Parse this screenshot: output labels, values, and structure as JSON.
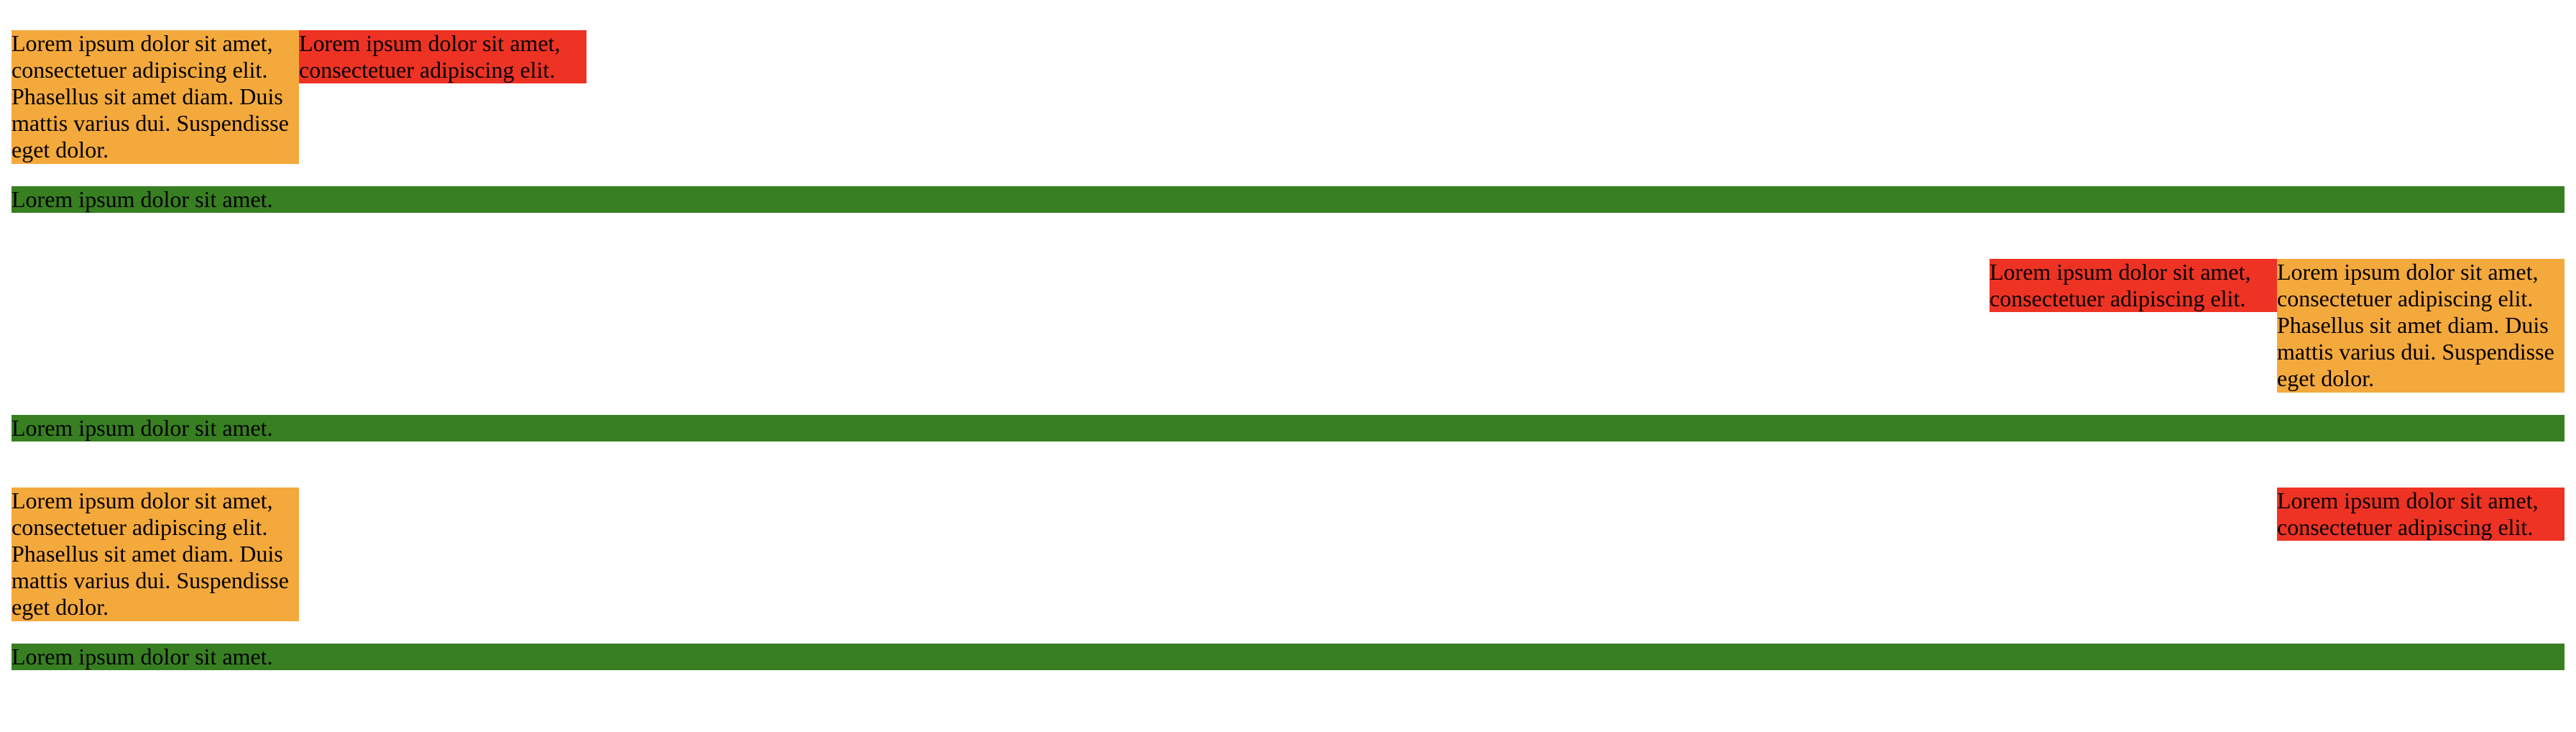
{
  "colors": {
    "orange": "#f4a93c",
    "red": "#ee3324",
    "green": "#387f22"
  },
  "sections": [
    {
      "long_text": "Lorem ipsum dolor sit amet, consectetuer adipiscing elit. Phasellus sit amet diam. Duis mattis varius dui. Suspendisse eget dolor.",
      "short_text": "Lorem ipsum dolor sit amet, consectetuer adipiscing elit.",
      "bar_text": "Lorem ipsum dolor sit amet."
    },
    {
      "long_text": "Lorem ipsum dolor sit amet, consectetuer adipiscing elit. Phasellus sit amet diam. Duis mattis varius dui. Suspendisse eget dolor.",
      "short_text": "Lorem ipsum dolor sit amet, consectetuer adipiscing elit.",
      "bar_text": "Lorem ipsum dolor sit amet."
    },
    {
      "long_text": "Lorem ipsum dolor sit amet, consectetuer adipiscing elit. Phasellus sit amet diam. Duis mattis varius dui. Suspendisse eget dolor.",
      "short_text": "Lorem ipsum dolor sit amet, consectetuer adipiscing elit.",
      "bar_text": "Lorem ipsum dolor sit amet."
    }
  ]
}
